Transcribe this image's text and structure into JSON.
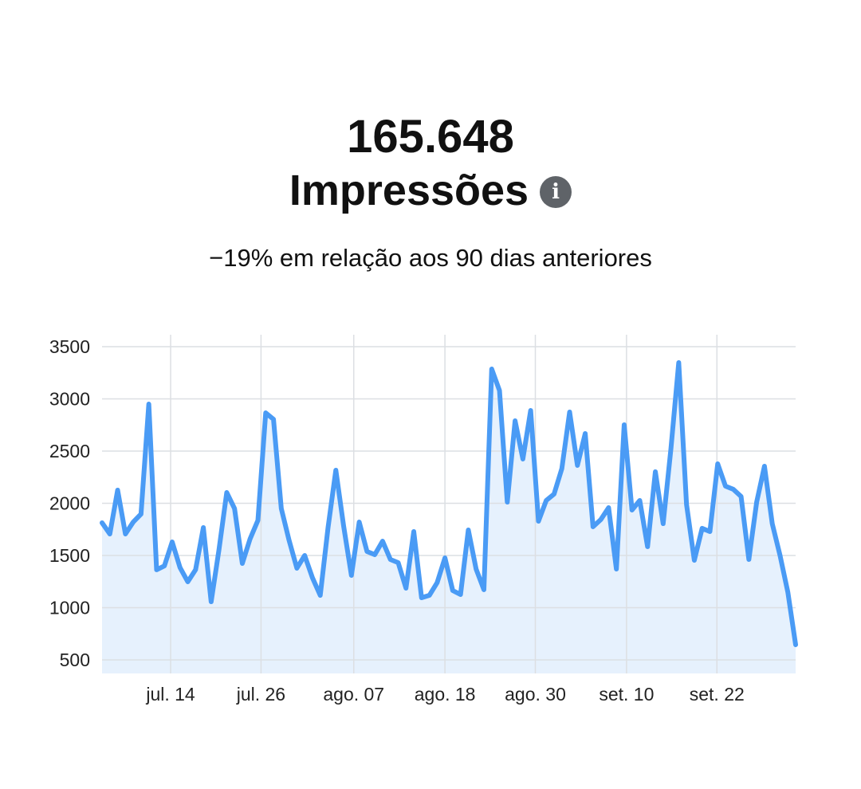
{
  "header": {
    "total": "165.648",
    "metric": "Impressões",
    "info_icon": "info-icon",
    "comparison": "−19% em relação aos 90 dias anteriores"
  },
  "colors": {
    "line": "#4a9bf5",
    "fill": "#e6f1fd",
    "grid": "#dcdfe3",
    "info": "#5f6368"
  },
  "chart_data": {
    "type": "area",
    "title": "Impressões",
    "xlabel": "",
    "ylabel": "",
    "ylim": [
      370,
      3500
    ],
    "yticks": [
      500,
      1000,
      1500,
      2000,
      2500,
      3000,
      3500
    ],
    "xticks": [
      {
        "label": "jul. 14",
        "index": 8.8
      },
      {
        "label": "jul. 26",
        "index": 20.4
      },
      {
        "label": "ago. 07",
        "index": 32.3
      },
      {
        "label": "ago. 18",
        "index": 44.0
      },
      {
        "label": "ago. 30",
        "index": 55.6
      },
      {
        "label": "set. 10",
        "index": 67.3
      },
      {
        "label": "set. 22",
        "index": 78.9
      }
    ],
    "grid": true,
    "legend": "none",
    "values": [
      1813,
      1706,
      2126,
      1706,
      1820,
      1897,
      2950,
      1363,
      1400,
      1630,
      1385,
      1248,
      1363,
      1767,
      1057,
      1553,
      2103,
      1950,
      1424,
      1660,
      1836,
      2866,
      2805,
      1950,
      1645,
      1378,
      1500,
      1286,
      1118,
      1767,
      2317,
      1782,
      1309,
      1820,
      1538,
      1508,
      1637,
      1462,
      1431,
      1187,
      1729,
      1095,
      1118,
      1240,
      1477,
      1164,
      1126,
      1744,
      1370,
      1172,
      3286,
      3080,
      2011,
      2790,
      2424,
      2889,
      1828,
      2027,
      2088,
      2332,
      2874,
      2363,
      2668,
      1775,
      1844,
      1958,
      1370,
      2752,
      1935,
      2027,
      1584,
      2302,
      1805,
      2523,
      3347,
      1989,
      1454,
      1760,
      1729,
      2378,
      2164,
      2134,
      2065,
      1462,
      2011,
      2355,
      1805,
      1500,
      1149,
      645
    ]
  }
}
